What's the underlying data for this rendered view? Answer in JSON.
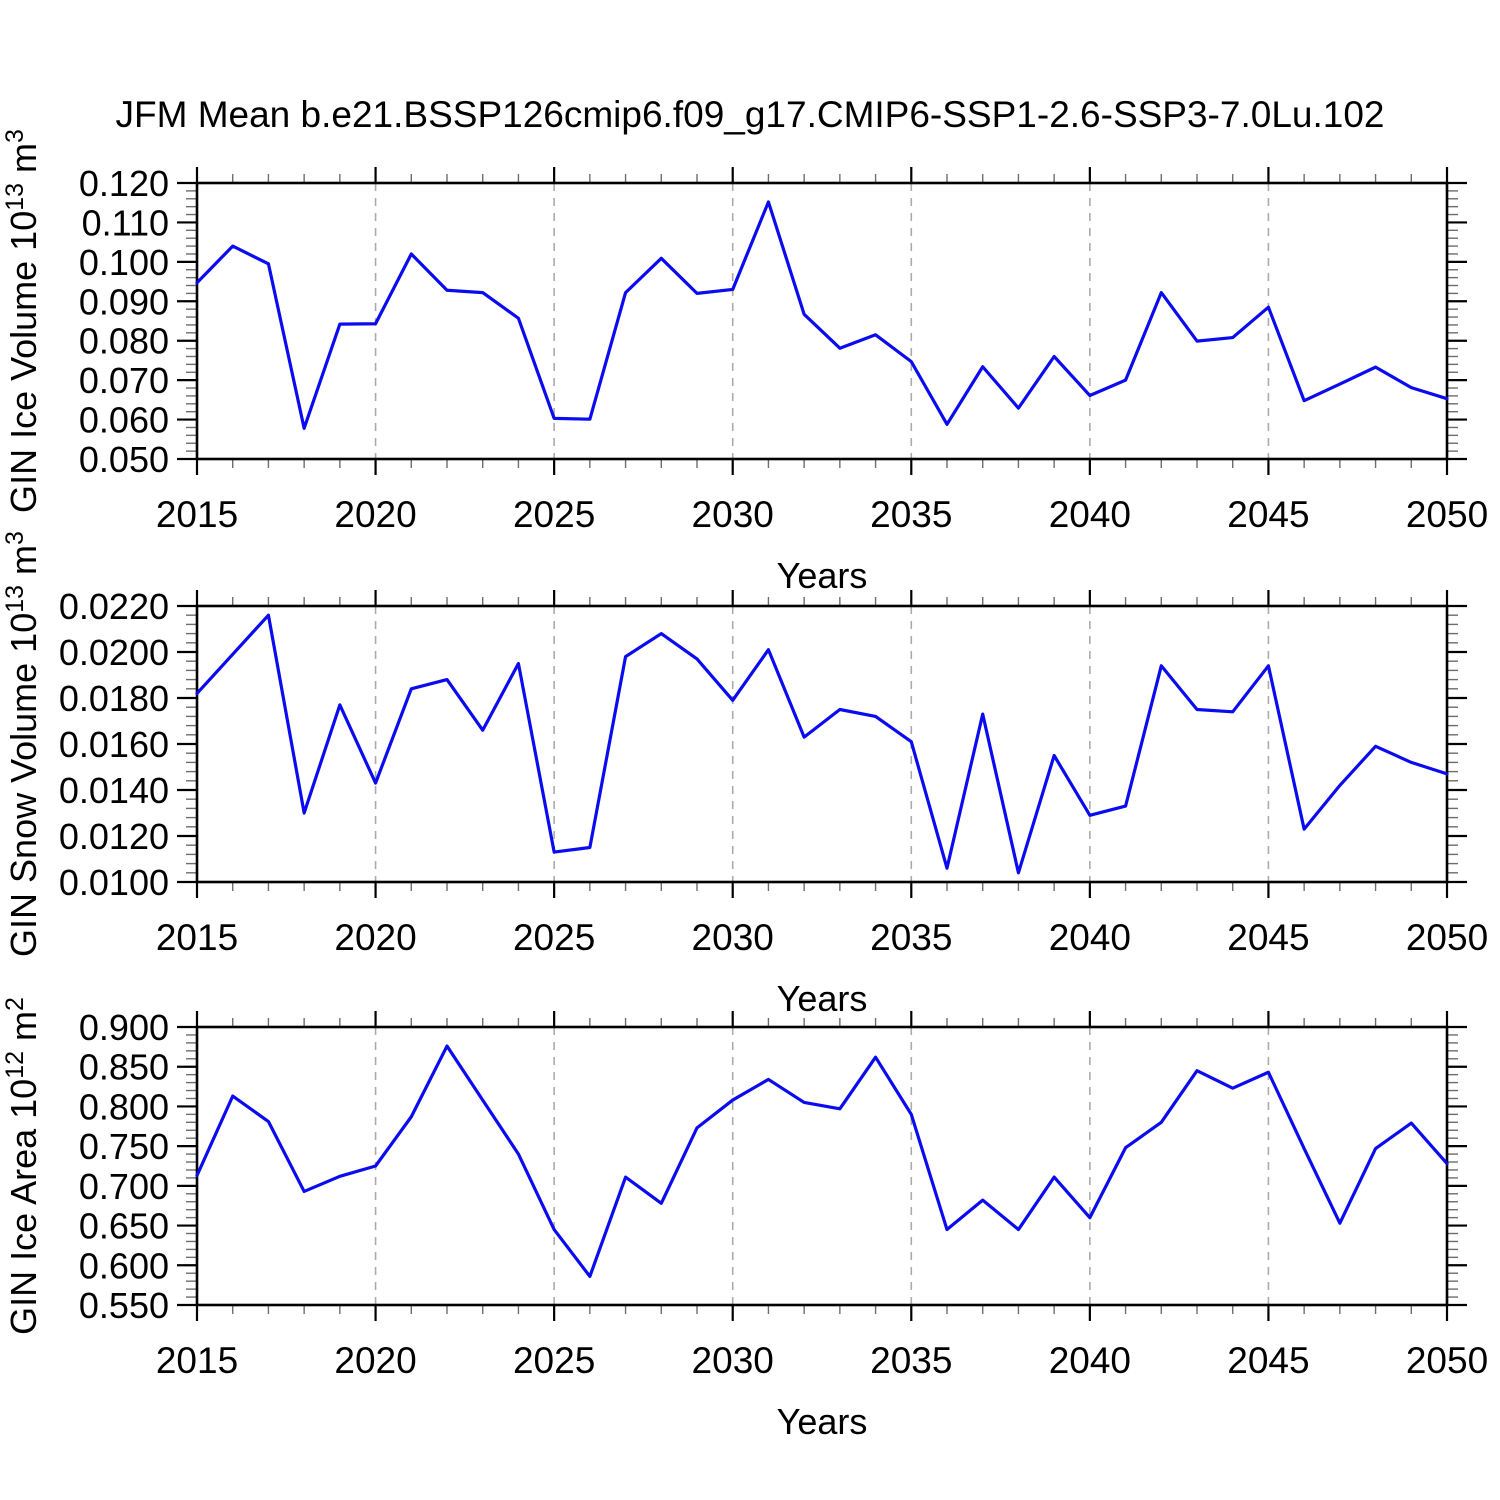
{
  "page": {
    "title": "JFM Mean b.e21.BSSP126cmip6.f09_g17.CMIP6-SSP1-2.6-SSP3-7.0Lu.102"
  },
  "style": {
    "line_color": "#0b0bef",
    "grid_color": "#ababab",
    "axis_color": "#000000",
    "minor_tick_color": "#6d6d6d",
    "background": "#ffffff"
  },
  "chart_data": [
    {
      "type": "line",
      "name": "ice-volume",
      "ylabel_parts": [
        "GIN Ice Volume 10",
        "13",
        " m",
        "3"
      ],
      "xlabel": "Years",
      "x": [
        2015,
        2016,
        2017,
        2018,
        2019,
        2020,
        2021,
        2022,
        2023,
        2024,
        2025,
        2026,
        2027,
        2028,
        2029,
        2030,
        2031,
        2032,
        2033,
        2034,
        2035,
        2036,
        2037,
        2038,
        2039,
        2040,
        2041,
        2042,
        2043,
        2044,
        2045,
        2046,
        2047,
        2048,
        2049,
        2050
      ],
      "values": [
        0.0947,
        0.104,
        0.0995,
        0.0578,
        0.0842,
        0.0843,
        0.102,
        0.0928,
        0.0922,
        0.0857,
        0.0603,
        0.0601,
        0.0922,
        0.1009,
        0.092,
        0.093,
        0.1152,
        0.0867,
        0.0781,
        0.0815,
        0.0747,
        0.0588,
        0.0734,
        0.0629,
        0.076,
        0.0661,
        0.07,
        0.0922,
        0.0799,
        0.0808,
        0.0885,
        0.0648,
        0.069,
        0.0733,
        0.0681,
        0.0653
      ],
      "xlim": [
        2015,
        2050
      ],
      "ylim": [
        0.05,
        0.12
      ],
      "yticks": [
        0.05,
        0.06,
        0.07,
        0.08,
        0.09,
        0.1,
        0.11,
        0.12
      ],
      "ytick_labels": [
        "0.050",
        "0.060",
        "0.070",
        "0.080",
        "0.090",
        "0.100",
        "0.110",
        "0.120"
      ],
      "y_minor_step": 0.002,
      "xticks": [
        2015,
        2020,
        2025,
        2030,
        2035,
        2040,
        2045,
        2050
      ],
      "xtick_labels": [
        "2015",
        "2020",
        "2025",
        "2030",
        "2035",
        "2040",
        "2045",
        "2050"
      ],
      "x_minor_step": 1,
      "grid_x": [
        2020,
        2025,
        2030,
        2035,
        2040,
        2045
      ],
      "grid_style": "vertical-dashed",
      "legend": null
    },
    {
      "type": "line",
      "name": "snow-volume",
      "ylabel_parts": [
        "GIN Snow Volume 10",
        "13",
        " m",
        "3"
      ],
      "xlabel": "Years",
      "x": [
        2015,
        2016,
        2017,
        2018,
        2019,
        2020,
        2021,
        2022,
        2023,
        2024,
        2025,
        2026,
        2027,
        2028,
        2029,
        2030,
        2031,
        2032,
        2033,
        2034,
        2035,
        2036,
        2037,
        2038,
        2039,
        2040,
        2041,
        2042,
        2043,
        2044,
        2045,
        2046,
        2047,
        2048,
        2049,
        2050
      ],
      "values": [
        0.0182,
        0.0199,
        0.0216,
        0.013,
        0.0177,
        0.0143,
        0.0184,
        0.0188,
        0.0166,
        0.0195,
        0.0113,
        0.0115,
        0.0198,
        0.0208,
        0.0197,
        0.0179,
        0.0201,
        0.0163,
        0.0175,
        0.0172,
        0.0161,
        0.0106,
        0.0173,
        0.0104,
        0.0155,
        0.0129,
        0.0133,
        0.0194,
        0.0175,
        0.0174,
        0.0194,
        0.0123,
        0.0142,
        0.0159,
        0.0152,
        0.0147
      ],
      "xlim": [
        2015,
        2050
      ],
      "ylim": [
        0.01,
        0.022
      ],
      "yticks": [
        0.01,
        0.012,
        0.014,
        0.016,
        0.018,
        0.02,
        0.022
      ],
      "ytick_labels": [
        "0.0100",
        "0.0120",
        "0.0140",
        "0.0160",
        "0.0180",
        "0.0200",
        "0.0220"
      ],
      "y_minor_step": 0.0004,
      "xticks": [
        2015,
        2020,
        2025,
        2030,
        2035,
        2040,
        2045,
        2050
      ],
      "xtick_labels": [
        "2015",
        "2020",
        "2025",
        "2030",
        "2035",
        "2040",
        "2045",
        "2050"
      ],
      "x_minor_step": 1,
      "grid_x": [
        2020,
        2025,
        2030,
        2035,
        2040,
        2045
      ],
      "grid_style": "vertical-dashed",
      "legend": null
    },
    {
      "type": "line",
      "name": "ice-area",
      "ylabel_parts": [
        "GIN Ice Area 10",
        "12",
        " m",
        "2"
      ],
      "xlabel": "Years",
      "x": [
        2015,
        2016,
        2017,
        2018,
        2019,
        2020,
        2021,
        2022,
        2023,
        2024,
        2025,
        2026,
        2027,
        2028,
        2029,
        2030,
        2031,
        2032,
        2033,
        2034,
        2035,
        2036,
        2037,
        2038,
        2039,
        2040,
        2041,
        2042,
        2043,
        2044,
        2045,
        2046,
        2047,
        2048,
        2049,
        2050
      ],
      "values": [
        0.713,
        0.813,
        0.781,
        0.693,
        0.712,
        0.725,
        0.787,
        0.876,
        0.808,
        0.74,
        0.645,
        0.586,
        0.711,
        0.678,
        0.773,
        0.808,
        0.834,
        0.805,
        0.797,
        0.862,
        0.79,
        0.645,
        0.682,
        0.645,
        0.711,
        0.66,
        0.748,
        0.78,
        0.845,
        0.823,
        0.843,
        0.747,
        0.653,
        0.747,
        0.779,
        0.728
      ],
      "xlim": [
        2015,
        2050
      ],
      "ylim": [
        0.55,
        0.9
      ],
      "yticks": [
        0.55,
        0.6,
        0.65,
        0.7,
        0.75,
        0.8,
        0.85,
        0.9
      ],
      "ytick_labels": [
        "0.550",
        "0.600",
        "0.650",
        "0.700",
        "0.750",
        "0.800",
        "0.850",
        "0.900"
      ],
      "y_minor_step": 0.01,
      "xticks": [
        2015,
        2020,
        2025,
        2030,
        2035,
        2040,
        2045,
        2050
      ],
      "xtick_labels": [
        "2015",
        "2020",
        "2025",
        "2030",
        "2035",
        "2040",
        "2045",
        "2050"
      ],
      "x_minor_step": 1,
      "grid_x": [
        2020,
        2025,
        2030,
        2035,
        2040,
        2045
      ],
      "grid_style": "vertical-dashed",
      "legend": null
    }
  ]
}
